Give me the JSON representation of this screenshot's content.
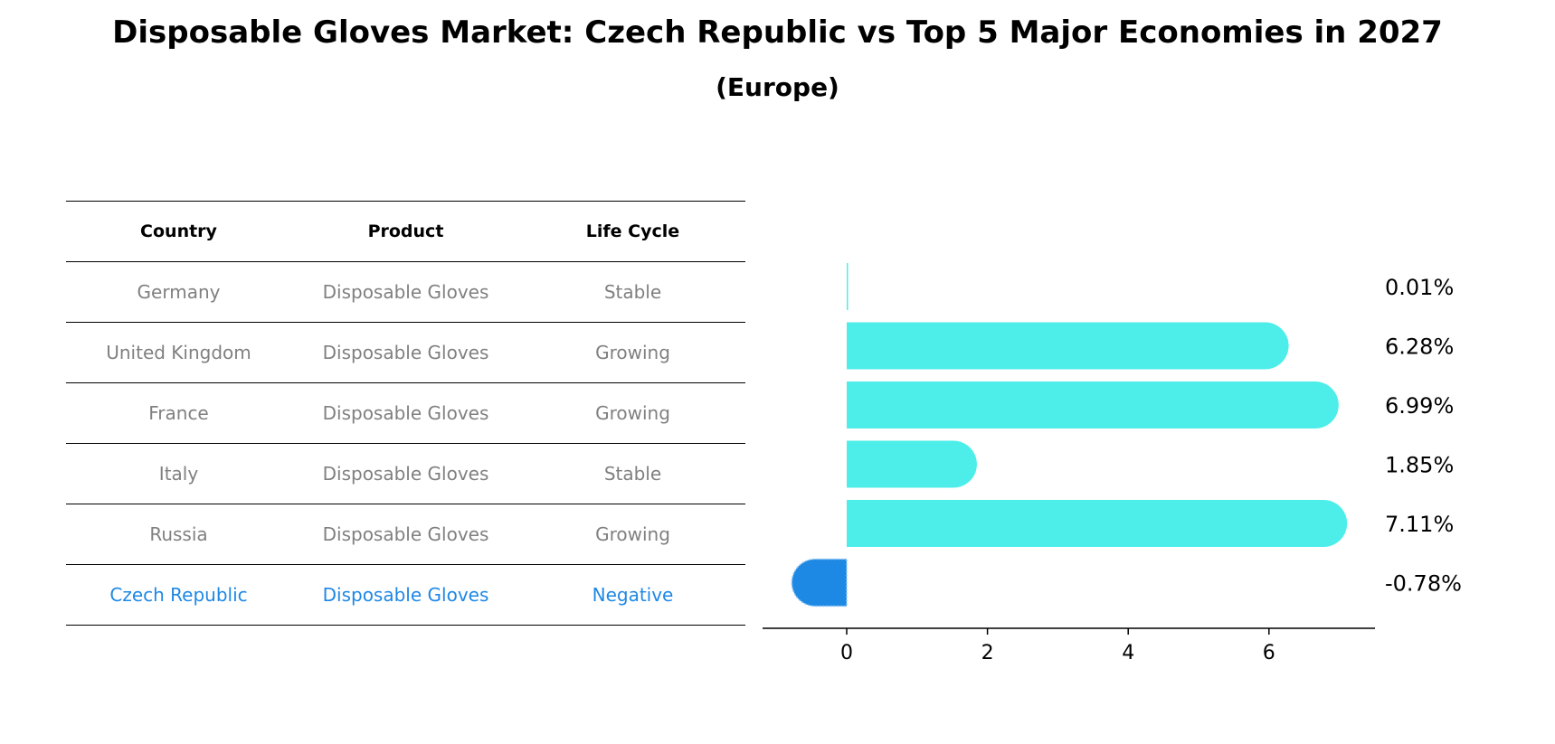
{
  "title": "Disposable Gloves Market: Czech Republic vs Top 5 Major Economies in 2027",
  "subtitle": "(Europe)",
  "table": {
    "headers": [
      "Country",
      "Product",
      "Life Cycle"
    ],
    "rows": [
      {
        "country": "Germany",
        "product": "Disposable Gloves",
        "life_cycle": "Stable"
      },
      {
        "country": "United Kingdom",
        "product": "Disposable Gloves",
        "life_cycle": "Growing"
      },
      {
        "country": "France",
        "product": "Disposable Gloves",
        "life_cycle": "Growing"
      },
      {
        "country": "Italy",
        "product": "Disposable Gloves",
        "life_cycle": "Stable"
      },
      {
        "country": "Russia",
        "product": "Disposable Gloves",
        "life_cycle": "Growing"
      },
      {
        "country": "Czech Republic",
        "product": "Disposable Gloves",
        "life_cycle": "Negative"
      }
    ]
  },
  "colors": {
    "bar": "#4deeea",
    "highlight": "#1e88e5",
    "muted_text": "#808080"
  },
  "chart_data": {
    "type": "bar",
    "orientation": "horizontal",
    "categories": [
      "Germany",
      "United Kingdom",
      "France",
      "Italy",
      "Russia",
      "Czech Republic"
    ],
    "values": [
      0.01,
      6.28,
      6.99,
      1.85,
      7.11,
      -0.78
    ],
    "value_labels": [
      "0.01%",
      "6.28%",
      "6.99%",
      "1.85%",
      "7.11%",
      "-0.78%"
    ],
    "highlight_category": "Czech Republic",
    "xlim": [
      -1.2,
      7.5
    ],
    "xticks": [
      0,
      2,
      4,
      6
    ],
    "grid": false
  }
}
